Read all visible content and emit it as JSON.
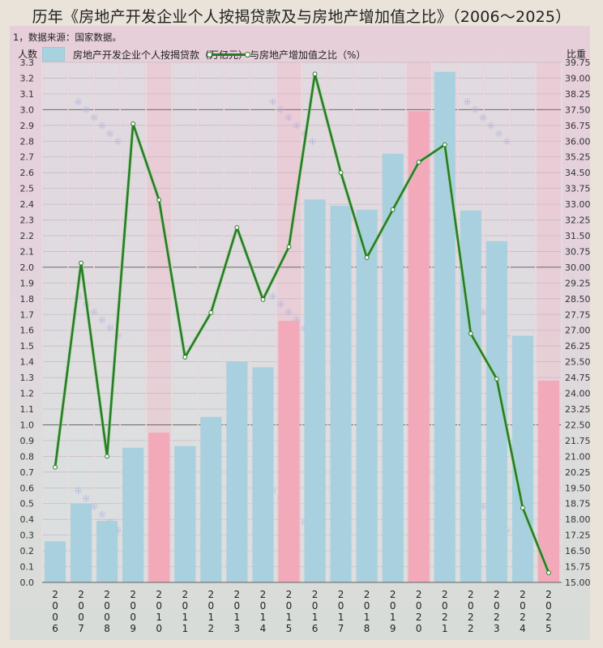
{
  "header": {
    "title": "历年《房地产开发企业个人按揭贷款及与房地产增加值之比》（2006～2025）",
    "note": "1，数据来源：国家数据。"
  },
  "axes": {
    "left_label": "人数",
    "right_label": "比重"
  },
  "legend": {
    "bar_label": "房地产开发企业个人按揭贷款（万亿元）",
    "line_label": "与房地产增加值之比（%）"
  },
  "colors": {
    "bar": "#a8d0de",
    "bar_highlight": "#f2a9b9",
    "line": "#2a7a2a",
    "col_bg": "#dde2e4",
    "col_bg_highlight": "#ecc9d2"
  },
  "chart_data": {
    "type": "bar+line",
    "title": "历年《房地产开发企业个人按揭贷款及与房地产增加值之比》（2006～2025）",
    "subtitle": "1，数据来源：国家数据。",
    "categories": [
      "2006",
      "2007",
      "2008",
      "2009",
      "2010",
      "2011",
      "2012",
      "2013",
      "2014",
      "2015",
      "2016",
      "2017",
      "2018",
      "2019",
      "2020",
      "2021",
      "2022",
      "2023",
      "2024",
      "2025"
    ],
    "highlight_categories": [
      "2010",
      "2015",
      "2020",
      "2025"
    ],
    "series": [
      {
        "name": "房地产开发企业个人按揭贷款（万亿元）",
        "type": "bar",
        "axis": "left",
        "values": [
          0.26,
          0.5,
          0.39,
          0.855,
          0.95,
          0.865,
          1.05,
          1.4,
          1.365,
          1.66,
          2.43,
          2.39,
          2.365,
          2.72,
          2.99,
          3.24,
          2.36,
          2.165,
          1.565,
          1.28
        ]
      },
      {
        "name": "与房地产增加值之比（%）",
        "type": "line",
        "axis": "right",
        "values": [
          20.48,
          30.2,
          21.0,
          36.83,
          33.2,
          25.72,
          27.84,
          31.89,
          28.46,
          30.97,
          39.2,
          34.5,
          30.46,
          32.74,
          35.0,
          35.83,
          26.84,
          24.68,
          18.55,
          15.46
        ]
      }
    ],
    "ylabel": "人数",
    "y2label": "比重",
    "ylim": [
      0,
      3.3
    ],
    "y2lim": [
      15.0,
      39.75
    ],
    "yticks": [
      "0.0",
      "0.1",
      "0.2",
      "0.3",
      "0.4",
      "0.5",
      "0.6",
      "0.7",
      "0.8",
      "0.9",
      "1.0",
      "1.1",
      "1.2",
      "1.3",
      "1.4",
      "1.5",
      "1.6",
      "1.7",
      "1.8",
      "1.9",
      "2.0",
      "2.1",
      "2.2",
      "2.3",
      "2.4",
      "2.5",
      "2.6",
      "2.7",
      "2.8",
      "2.9",
      "3.0",
      "3.1",
      "3.2",
      "3.3"
    ],
    "y2ticks": [
      "15.00",
      "15.75",
      "16.50",
      "17.25",
      "18.00",
      "18.75",
      "19.50",
      "20.25",
      "21.00",
      "21.75",
      "22.50",
      "23.25",
      "24.00",
      "24.75",
      "25.50",
      "26.25",
      "27.00",
      "27.75",
      "28.50",
      "29.25",
      "30.00",
      "30.75",
      "31.50",
      "32.25",
      "33.00",
      "33.75",
      "34.50",
      "35.25",
      "36.00",
      "36.75",
      "37.50",
      "38.25",
      "39.00",
      "39.75"
    ],
    "major_lines_left": [
      1.0,
      2.0,
      3.0
    ],
    "grid": true,
    "legend_position": "top"
  }
}
